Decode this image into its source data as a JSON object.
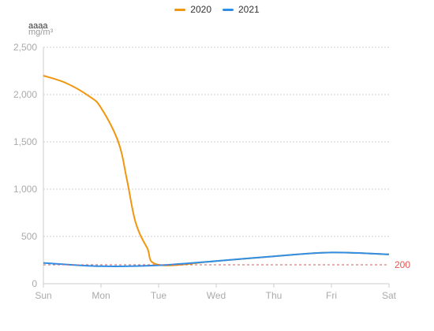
{
  "chart_data": {
    "type": "line",
    "title": "",
    "ylabel_top": "aaaa",
    "yunit": "mg/m³",
    "categories": [
      "Sun",
      "Mon",
      "Tue",
      "Wed",
      "Thu",
      "Fri",
      "Sat"
    ],
    "ylim": [
      0,
      2500
    ],
    "yticks": [
      0,
      500,
      1000,
      1500,
      2000,
      2500
    ],
    "ytick_labels": [
      "0",
      "500",
      "1,000",
      "1,500",
      "2,000",
      "2,500"
    ],
    "grid": true,
    "legend_position": "top-center",
    "series": [
      {
        "name": "2020",
        "color": "#f0960f",
        "values": [
          2200,
          1860,
          200,
          240,
          290,
          330,
          310
        ],
        "smooth_points": [
          [
            "Sun",
            2200
          ],
          [
            "Sun+0.4",
            2120
          ],
          [
            "Mon-0.2",
            1980
          ],
          [
            "Mon",
            1860
          ],
          [
            "Mon+0.3",
            1500
          ],
          [
            "Mon+0.45",
            1100
          ],
          [
            "Mon+0.6",
            650
          ],
          [
            "Mon+0.8",
            380
          ],
          [
            "Tue",
            200
          ]
        ]
      },
      {
        "name": "2021",
        "color": "#2f8fe6",
        "values": [
          220,
          185,
          195,
          240,
          290,
          330,
          310
        ]
      }
    ],
    "reference_line": {
      "value": 200,
      "label": "200",
      "color": "#e8534f"
    }
  }
}
